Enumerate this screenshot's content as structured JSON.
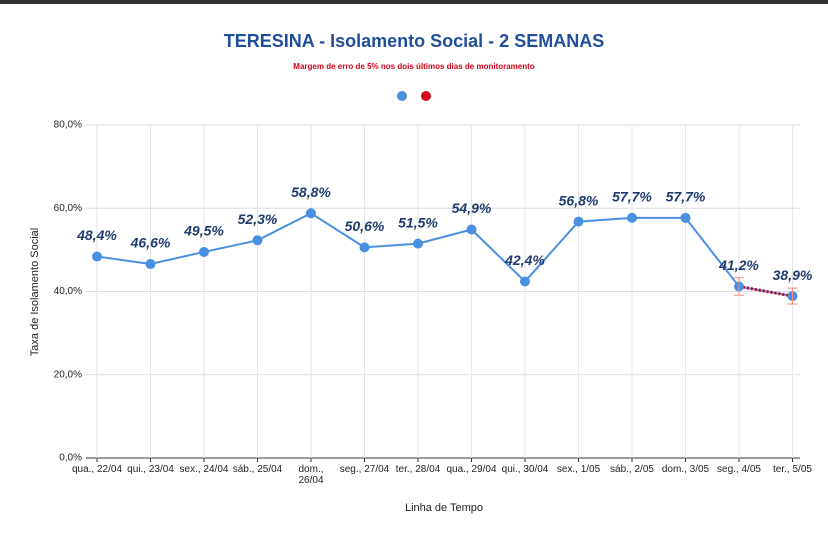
{
  "chart_data": {
    "type": "line",
    "title": "TERESINA - Isolamento Social - 2 SEMANAS",
    "subtitle": "Margem de erro de 5% nos dois últimos dias de monitoramento",
    "x_label": "Linha de Tempo",
    "y_label": "Taxa de Isolamento Social",
    "categories": [
      "qua., 22/04",
      "qui., 23/04",
      "sex., 24/04",
      "sáb., 25/04",
      "dom., 26/04",
      "seg., 27/04",
      "ter., 28/04",
      "qua., 29/04",
      "qui., 30/04",
      "sex., 1/05",
      "sáb., 2/05",
      "dom., 3/05",
      "seg., 4/05",
      "ter., 5/05"
    ],
    "series": [
      {
        "color": "#4a90e2",
        "values": [
          48.4,
          46.6,
          49.5,
          52.3,
          58.8,
          50.6,
          51.5,
          54.9,
          42.4,
          56.8,
          57.7,
          57.7,
          41.2,
          38.9
        ],
        "value_labels": [
          "48,4%",
          "46,6%",
          "49,5%",
          "52,3%",
          "58,8%",
          "50,6%",
          "51,5%",
          "54,9%",
          "42,4%",
          "56,8%",
          "57,7%",
          "57,7%",
          "41,2%",
          "38,9%"
        ]
      },
      {
        "color": "#d0021b",
        "values": [
          null,
          null,
          null,
          null,
          null,
          null,
          null,
          null,
          null,
          null,
          null,
          null,
          41.2,
          38.9
        ],
        "errors": [
          null,
          null,
          null,
          null,
          null,
          null,
          null,
          null,
          null,
          null,
          null,
          null,
          2.1,
          1.9
        ]
      }
    ],
    "ylim": [
      0,
      80
    ],
    "yticks": [
      {
        "value": 0,
        "label": "0,0%"
      },
      {
        "value": 20,
        "label": "20,0%"
      },
      {
        "value": 40,
        "label": "40,0%"
      },
      {
        "value": 60,
        "label": "60,0%"
      },
      {
        "value": 80,
        "label": "80,0%"
      }
    ],
    "grid": true
  }
}
